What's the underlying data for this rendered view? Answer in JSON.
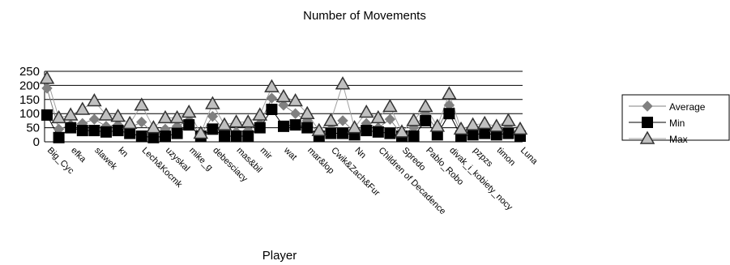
{
  "chart_data": {
    "type": "line",
    "title": "Number of Movements",
    "x_label": "Player",
    "categories": [
      "Big_Cyc",
      null,
      "efka",
      null,
      "slawek",
      null,
      "kn",
      null,
      "Lech&Kocmk",
      null,
      "uzyskal",
      null,
      "mike_g",
      null,
      "debesciacy",
      null,
      "mas&bil",
      null,
      "mir",
      null,
      "wat",
      null,
      "mar&lop",
      null,
      "Cwik&Zach&Fur",
      null,
      "Nn",
      null,
      "Children of Decadence",
      null,
      "Spredo",
      null,
      "Pablo_Robo",
      null,
      "divak_i_kobiety_nocy",
      null,
      "pzpzs",
      null,
      "timon",
      null,
      "Luna"
    ],
    "series": [
      {
        "name": "Average",
        "color": "#808080",
        "marker": "diamond",
        "values": [
          190,
          45,
          60,
          65,
          80,
          55,
          60,
          50,
          70,
          30,
          45,
          55,
          75,
          25,
          90,
          40,
          35,
          40,
          65,
          155,
          130,
          100,
          75,
          30,
          45,
          75,
          35,
          65,
          50,
          80,
          25,
          50,
          100,
          40,
          130,
          30,
          40,
          45,
          35,
          50,
          25
        ]
      },
      {
        "name": "Min",
        "color": "#000000",
        "marker": "square",
        "values": [
          95,
          15,
          50,
          40,
          40,
          35,
          40,
          30,
          20,
          15,
          20,
          30,
          60,
          20,
          45,
          20,
          20,
          20,
          50,
          115,
          55,
          60,
          50,
          20,
          30,
          30,
          25,
          40,
          35,
          30,
          20,
          20,
          75,
          25,
          100,
          20,
          25,
          30,
          25,
          30,
          20
        ]
      },
      {
        "name": "Max",
        "color": "#c0c0c0",
        "marker": "triangle",
        "values": [
          225,
          85,
          95,
          115,
          145,
          95,
          90,
          65,
          130,
          50,
          85,
          85,
          105,
          30,
          135,
          60,
          70,
          70,
          95,
          195,
          160,
          145,
          100,
          40,
          75,
          205,
          50,
          105,
          85,
          125,
          35,
          75,
          125,
          55,
          170,
          45,
          60,
          65,
          55,
          75,
          45
        ]
      }
    ],
    "ylim": [
      0,
      250
    ],
    "yticks": [
      0,
      50,
      100,
      150,
      200,
      250
    ],
    "grid": true,
    "legend": "right"
  }
}
